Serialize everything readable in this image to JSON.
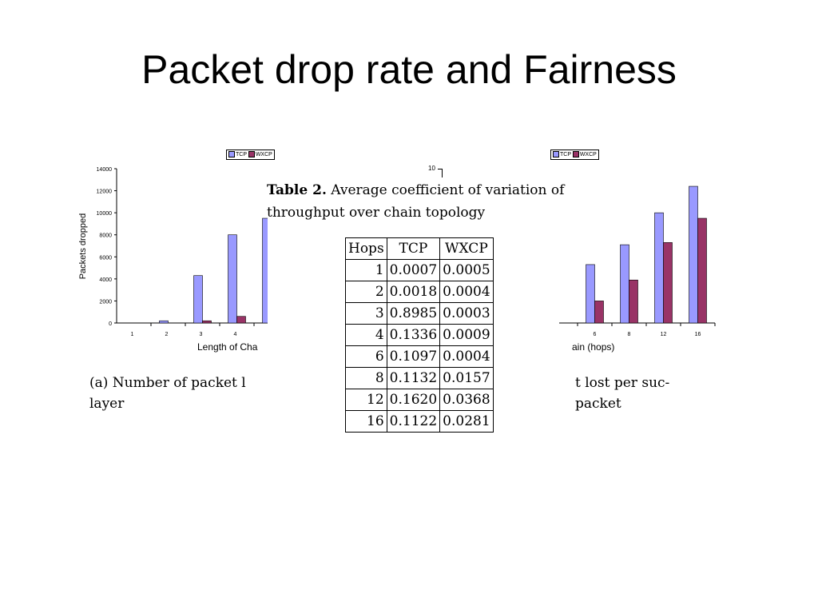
{
  "slide": {
    "title": "Packet drop rate and Fairness"
  },
  "colors": {
    "tcp": "#9999ff",
    "wxcp": "#993366"
  },
  "left_chart": {
    "legend": {
      "tcp": "TCP",
      "wxcp": "WXCP"
    },
    "ylabel": "Packets dropped",
    "xlabel_visible": "Length of Cha",
    "caption_lines": [
      "(a) Number of packet l",
      "layer"
    ]
  },
  "right_chart": {
    "legend": {
      "tcp": "TCP",
      "wxcp": "WXCP"
    },
    "top_tick": "10",
    "xlabel_visible": "ain (hops)",
    "caption_lines": [
      "t  lost  per  suc-",
      "packet"
    ]
  },
  "table": {
    "caption_bold": "Table 2.",
    "caption_rest": " Average coefficient of variation of throughput over chain topology",
    "headers": [
      "Hops",
      "TCP",
      "WXCP"
    ],
    "rows": [
      [
        "1",
        "0.0007",
        "0.0005"
      ],
      [
        "2",
        "0.0018",
        "0.0004"
      ],
      [
        "3",
        "0.8985",
        "0.0003"
      ],
      [
        "4",
        "0.1336",
        "0.0009"
      ],
      [
        "6",
        "0.1097",
        "0.0004"
      ],
      [
        "8",
        "0.1132",
        "0.0157"
      ],
      [
        "12",
        "0.1620",
        "0.0368"
      ],
      [
        "16",
        "0.1122",
        "0.0281"
      ]
    ]
  },
  "chart_data": [
    {
      "type": "bar",
      "categories": [
        "1",
        "2",
        "3",
        "4"
      ],
      "series": [
        {
          "name": "TCP",
          "values": [
            0,
            200,
            4300,
            8000
          ]
        },
        {
          "name": "WXCP",
          "values": [
            0,
            0,
            200,
            600
          ]
        }
      ],
      "partial_bar_tcp_next": 9500,
      "ylabel": "Packets dropped",
      "xlabel": "Length of Cha",
      "ylim": [
        0,
        14000
      ],
      "yticks": [
        "0",
        "2000",
        "4000",
        "6000",
        "8000",
        "10000",
        "12000",
        "14000"
      ],
      "legend": "top"
    },
    {
      "type": "bar",
      "categories": [
        "6",
        "8",
        "12",
        "16"
      ],
      "series": [
        {
          "name": "TCP",
          "values": [
            5300,
            7100,
            10000,
            12400
          ]
        },
        {
          "name": "WXCP",
          "values": [
            2000,
            3900,
            7300,
            9500
          ]
        }
      ],
      "xlabel": "ain (hops)",
      "legend": "top"
    }
  ]
}
